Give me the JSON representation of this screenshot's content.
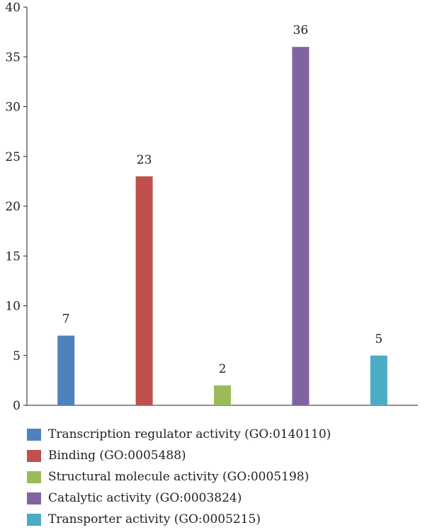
{
  "chart_data": {
    "type": "bar",
    "ylim": [
      0,
      40
    ],
    "yticks": [
      0,
      5,
      10,
      15,
      20,
      25,
      30,
      35,
      40
    ],
    "categories": [
      "Transcription regulator activity (GO:0140110)",
      "Binding (GO:0005488)",
      "Structural molecule activity (GO:0005198)",
      "Catalytic activity (GO:0003824)",
      "Transporter activity (GO:0005215)"
    ],
    "values": [
      7,
      23,
      2,
      36,
      5
    ],
    "colors": [
      "#4f81bd",
      "#c0504d",
      "#9bbb59",
      "#8064a2",
      "#4bacc6"
    ],
    "legend_position": "bottom",
    "grid": false
  }
}
